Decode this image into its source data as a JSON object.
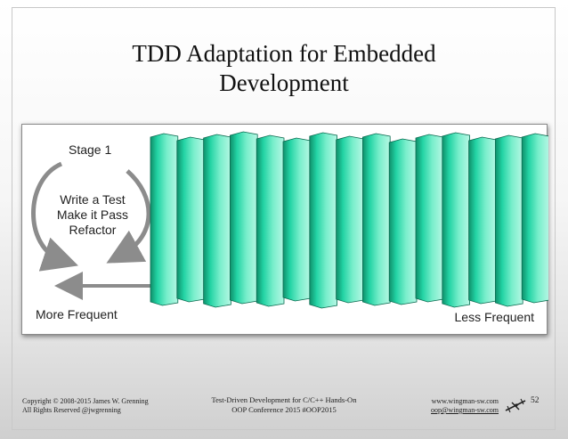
{
  "slide": {
    "title_line1": "TDD Adaptation for Embedded",
    "title_line2": "Development",
    "page_number": "52"
  },
  "panel": {
    "stage_label": "Stage 1",
    "steps": [
      "Write a Test",
      "Make it Pass",
      "Refactor"
    ],
    "left_label": "More Frequent",
    "right_label": "Less Frequent"
  },
  "footer": {
    "copyright_line1": "Copyright © 2008-2015 James W. Grenning",
    "copyright_line2": "All Rights Reserved        @jwgrenning",
    "course_line1": "Test-Driven Development for C/C++ Hands-On",
    "course_line2": "OOP Conference 2015 #OOP2015",
    "website": "www.wingman-sw.com",
    "email": "oop@wingman-sw.com",
    "logo_icon": "wingman-plane-icon"
  },
  "colors": {
    "cover_top": "#1fd6a6",
    "cover_mid": "#7ff0cf",
    "cover_edge": "#0d7356",
    "arrow": "#8c8c8c"
  }
}
